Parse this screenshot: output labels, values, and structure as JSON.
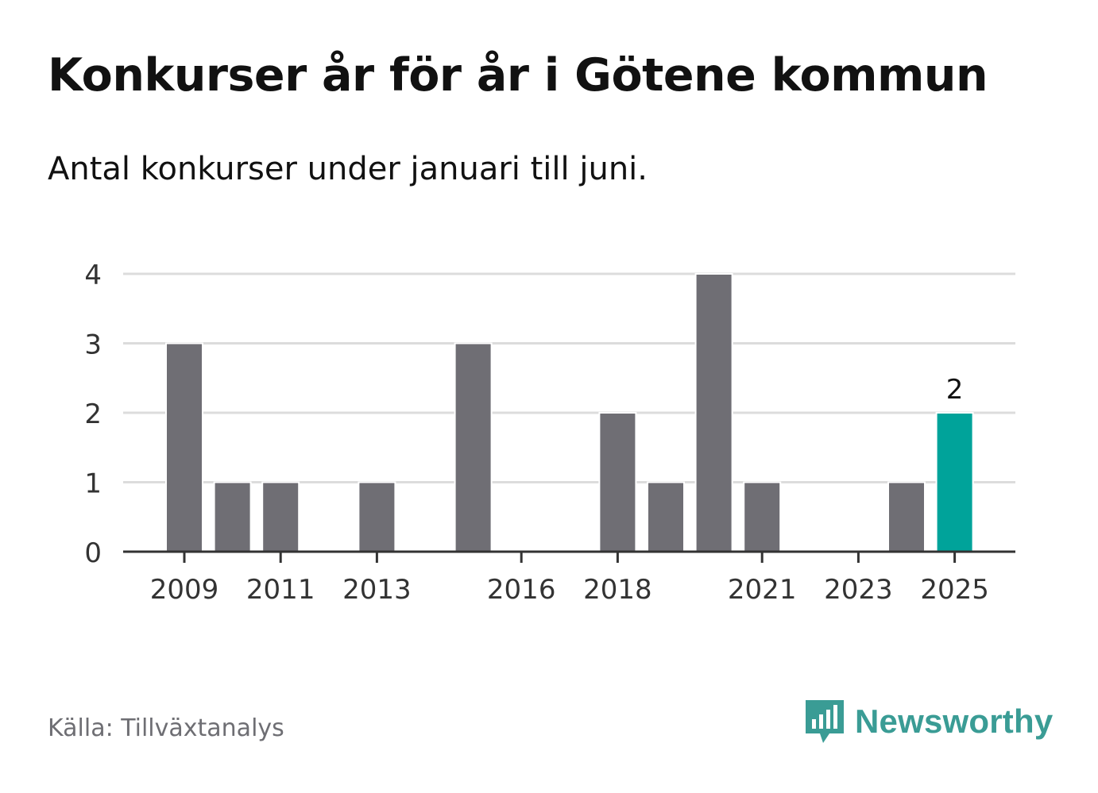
{
  "title": "Konkurser år för år i Götene kommun",
  "subtitle": "Antal konkurser under januari till juni.",
  "source": "Källa: Tillväxtanalys",
  "brand": {
    "name": "Newsworthy",
    "icon": "newsworthy-logo-icon"
  },
  "colors": {
    "bar": "#6f6e74",
    "highlight": "#00a39a",
    "grid": "#dcdcdc",
    "axis": "#333333"
  },
  "chart_data": {
    "type": "bar",
    "categories": [
      "2009",
      "2010",
      "2011",
      "2012",
      "2013",
      "2014",
      "2015",
      "2016",
      "2017",
      "2018",
      "2019",
      "2020",
      "2021",
      "2022",
      "2023",
      "2024",
      "2025"
    ],
    "values": [
      3,
      1,
      1,
      0,
      1,
      0,
      3,
      0,
      0,
      2,
      1,
      4,
      1,
      0,
      0,
      1,
      2
    ],
    "xtick_labels": [
      "2009",
      "2011",
      "2013",
      "2016",
      "2018",
      "2021",
      "2023",
      "2025"
    ],
    "yticks": [
      0,
      1,
      2,
      3,
      4
    ],
    "ylim": [
      0,
      4
    ],
    "highlight_category": "2025",
    "highlight_label": "2",
    "grid": true
  }
}
